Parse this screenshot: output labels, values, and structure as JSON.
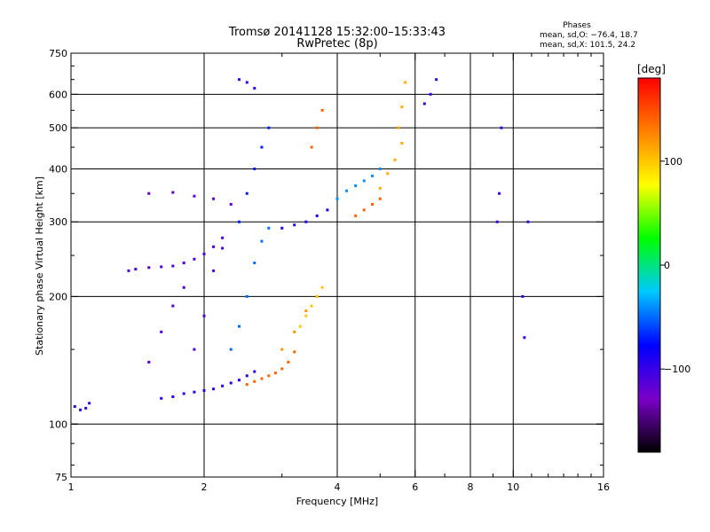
{
  "chart_data": {
    "type": "scatter",
    "title": "Tromsø 20141128 15:32:00–15:33:43",
    "subtitle": "RwPretec (8p)",
    "xlabel": "Frequency [MHz]",
    "ylabel": "Stationary phase Virtual Height [km]",
    "x_scale": "log",
    "y_scale": "log",
    "xlim": [
      1,
      16
    ],
    "ylim": [
      75,
      750
    ],
    "x_ticks": [
      1,
      2,
      4,
      6,
      8,
      10,
      16
    ],
    "x_tick_labels": [
      "1",
      "2",
      "4",
      "6",
      "8",
      "10",
      "16"
    ],
    "y_ticks": [
      75,
      100,
      200,
      300,
      400,
      500,
      600,
      750
    ],
    "y_tick_labels": [
      "75",
      "100",
      "200",
      "300",
      "400",
      "500",
      "600",
      "750"
    ],
    "x_grid": [
      2,
      4,
      6,
      8,
      10
    ],
    "y_grid": [
      100,
      200,
      300,
      400,
      500,
      600
    ],
    "grid": true,
    "stats": {
      "heading": "Phases",
      "line_o": "mean, sd,O: −76.4, 18.7",
      "line_x": "mean, sd,X: 101.5, 24.2"
    },
    "colorbar": {
      "label": "[deg]",
      "range": [
        -180,
        180
      ],
      "ticks": [
        100,
        0,
        -100
      ],
      "tick_labels": [
        "100",
        "0",
        "−100"
      ],
      "colors": [
        "#000000",
        "#7a00c8",
        "#0000ff",
        "#00c8ff",
        "#00ff00",
        "#ffff00",
        "#ff8000",
        "#ff0000"
      ]
    },
    "series": [
      {
        "x": [
          1.02,
          1.05,
          1.08,
          1.1
        ],
        "y": [
          110,
          108,
          109,
          112
        ],
        "phase": -100
      },
      {
        "x": [
          1.6,
          1.7,
          1.8,
          1.9,
          2.0,
          2.1,
          2.2,
          2.3,
          2.4,
          2.5,
          2.6
        ],
        "y": [
          115,
          116,
          118,
          119,
          120,
          121,
          123,
          125,
          127,
          130,
          133
        ],
        "phase": -95
      },
      {
        "x": [
          1.35,
          1.4,
          1.5,
          1.6,
          1.7,
          1.8,
          1.9,
          2.0,
          2.1,
          2.2
        ],
        "y": [
          230,
          232,
          234,
          235,
          236,
          240,
          245,
          252,
          262,
          275
        ],
        "phase": -110
      },
      {
        "x": [
          1.5,
          1.7,
          1.9,
          2.1,
          2.3
        ],
        "y": [
          350,
          352,
          345,
          340,
          330
        ],
        "phase": -115
      },
      {
        "x": [
          1.5,
          1.6,
          1.7,
          1.8,
          1.9,
          2.0,
          2.1,
          2.2
        ],
        "y": [
          140,
          165,
          190,
          210,
          150,
          180,
          230,
          260
        ],
        "phase": -110
      },
      {
        "x": [
          2.3,
          2.4,
          2.5,
          2.6,
          2.7,
          2.8
        ],
        "y": [
          150,
          170,
          200,
          240,
          270,
          290
        ],
        "phase": -50
      },
      {
        "x": [
          2.4,
          2.5,
          2.6,
          2.7,
          2.8
        ],
        "y": [
          300,
          350,
          400,
          450,
          500
        ],
        "phase": -70
      },
      {
        "x": [
          2.4,
          2.5,
          2.6
        ],
        "y": [
          650,
          640,
          620
        ],
        "phase": -100
      },
      {
        "x": [
          2.5,
          2.6,
          2.7,
          2.8,
          2.9,
          3.0,
          3.1,
          3.2
        ],
        "y": [
          124,
          126,
          128,
          130,
          132,
          135,
          140,
          148
        ],
        "phase": 140
      },
      {
        "x": [
          3.0,
          3.2,
          3.4,
          3.6
        ],
        "y": [
          150,
          165,
          185,
          200
        ],
        "phase": 120
      },
      {
        "x": [
          3.3,
          3.4,
          3.5,
          3.6,
          3.7
        ],
        "y": [
          170,
          180,
          190,
          200,
          210
        ],
        "phase": 100
      },
      {
        "x": [
          3.0,
          3.2,
          3.4,
          3.6,
          3.8
        ],
        "y": [
          290,
          295,
          300,
          310,
          320
        ],
        "phase": -90
      },
      {
        "x": [
          3.5,
          3.6,
          3.7
        ],
        "y": [
          450,
          500,
          550
        ],
        "phase": 140
      },
      {
        "x": [
          4.0,
          4.2,
          4.4,
          4.6,
          4.8,
          5.0
        ],
        "y": [
          340,
          355,
          365,
          375,
          385,
          400
        ],
        "phase": -40
      },
      {
        "x": [
          4.4,
          4.6,
          4.8,
          5.0
        ],
        "y": [
          310,
          320,
          330,
          340
        ],
        "phase": 140
      },
      {
        "x": [
          5.0,
          5.2,
          5.4,
          5.6
        ],
        "y": [
          360,
          390,
          420,
          460
        ],
        "phase": 110
      },
      {
        "x": [
          5.5,
          5.6,
          5.7
        ],
        "y": [
          500,
          560,
          640
        ],
        "phase": 110
      },
      {
        "x": [
          6.3,
          6.5,
          6.7
        ],
        "y": [
          570,
          600,
          650
        ],
        "phase": -100
      },
      {
        "x": [
          9.2,
          9.3,
          9.4
        ],
        "y": [
          300,
          350,
          500
        ],
        "phase": -100
      },
      {
        "x": [
          10.5,
          10.6,
          10.8
        ],
        "y": [
          200,
          160,
          300
        ],
        "phase": -100
      }
    ]
  }
}
